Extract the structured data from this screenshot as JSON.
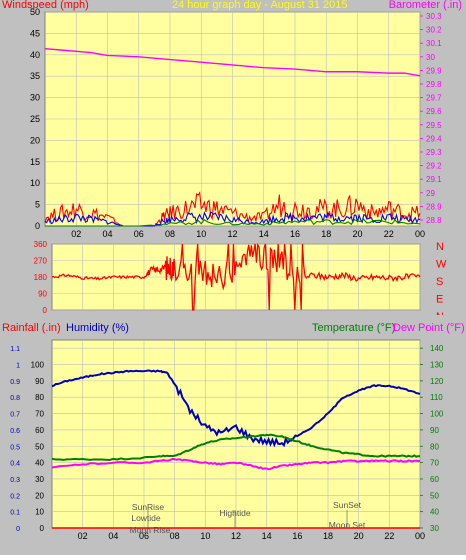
{
  "chart_data": [
    {
      "type": "line",
      "title": "24 hour graph day - August 31 2015",
      "left_label": "Windspeed (mph)",
      "right_label": "Barometer (.in)",
      "left_axis": {
        "ticks": [
          "0",
          "5",
          "10",
          "15",
          "20",
          "25",
          "30",
          "35",
          "40",
          "45",
          "50"
        ],
        "ylim": [
          0,
          50
        ]
      },
      "right_axis": {
        "ticks": [
          "28.8",
          "28.9",
          "29",
          "29.1",
          "29.2",
          "29.3",
          "29.4",
          "29.5",
          "29.6",
          "29.7",
          "29.8",
          "29.9",
          "30",
          "30.1",
          "30.2",
          "30.3"
        ],
        "ylim": [
          28.8,
          30.3
        ]
      },
      "x_ticks": [
        "02",
        "04",
        "06",
        "08",
        "10",
        "12",
        "14",
        "16",
        "18",
        "20",
        "22",
        "00"
      ],
      "series": [
        {
          "axis": "right",
          "color": "#ff00ff",
          "x": [
            0,
            1,
            2,
            3,
            4,
            6,
            8,
            10,
            12,
            14,
            16,
            18,
            20,
            22,
            23,
            24
          ],
          "values": [
            30.06,
            30.05,
            30.04,
            30.03,
            30.01,
            30.0,
            29.98,
            29.96,
            29.94,
            29.92,
            29.91,
            29.89,
            29.89,
            29.88,
            29.88,
            29.86
          ]
        },
        {
          "axis": "left",
          "color": "#ff0000",
          "name_hint": "gust",
          "x": [
            0,
            1,
            2,
            3,
            4,
            5,
            6,
            7,
            7.5,
            8,
            9,
            10,
            11,
            12,
            13,
            14,
            15,
            16,
            17,
            18,
            19,
            20,
            21,
            22,
            23,
            24
          ],
          "values": [
            2,
            3,
            4,
            3,
            2,
            0,
            0,
            0,
            2,
            3,
            4,
            5,
            4,
            3,
            2,
            2,
            5,
            4,
            4,
            4,
            4,
            5,
            3,
            4,
            3,
            3
          ]
        },
        {
          "axis": "left",
          "color": "#0000ff",
          "name_hint": "average",
          "x": [
            0,
            1,
            2,
            3,
            4,
            5,
            6,
            7,
            7.5,
            8,
            9,
            10,
            11,
            12,
            13,
            14,
            15,
            16,
            17,
            18,
            19,
            20,
            21,
            22,
            23,
            24
          ],
          "values": [
            1,
            1.5,
            2,
            1.5,
            1,
            0,
            0,
            0,
            1,
            1.5,
            2,
            2,
            2,
            1.5,
            1,
            1,
            2,
            2,
            2,
            2,
            2,
            2,
            1.5,
            2,
            1.5,
            1.5
          ]
        },
        {
          "axis": "left",
          "color": "#008000",
          "name_hint": "low",
          "x": [
            0,
            6,
            8,
            10,
            12,
            14,
            16,
            18,
            20,
            22,
            24
          ],
          "values": [
            0,
            0,
            0.5,
            1,
            0.5,
            0.5,
            1,
            1,
            1,
            1,
            0.5
          ]
        }
      ]
    },
    {
      "type": "scatter",
      "title": "",
      "left_axis": {
        "ticks": [
          "0",
          "90",
          "180",
          "270",
          "360"
        ],
        "ylim": [
          0,
          360
        ]
      },
      "right_labels": [
        "N",
        "W",
        "S",
        "E",
        "N"
      ],
      "series": [
        {
          "color": "#ff0000",
          "x": [
            0,
            1,
            2,
            3,
            4,
            5,
            6,
            6.5,
            7,
            7.5,
            8,
            9,
            10,
            11,
            12,
            13,
            14,
            15,
            16,
            17,
            18,
            19,
            20,
            21,
            22,
            23,
            24
          ],
          "values": [
            180,
            190,
            175,
            170,
            180,
            180,
            180,
            220,
            220,
            230,
            230,
            210,
            200,
            180,
            230,
            300,
            280,
            250,
            170,
            190,
            180,
            190,
            170,
            180,
            175,
            180,
            180
          ]
        }
      ],
      "note": "Wind direction degrees; many spikes to 0/360 between 08-16"
    },
    {
      "type": "line",
      "left_label_1": "Rainfall (.in)",
      "left_label_2": "Humidity (%)",
      "right_label_1": "Temperature (°F)",
      "right_label_2": "Dew Point (°F)",
      "rain_axis": {
        "ticks": [
          "0",
          "0.1",
          "0.2",
          "0.3",
          "0.4",
          "0.5",
          "0.6",
          "0.7",
          "0.8",
          "0.9",
          "1",
          "1.1"
        ],
        "ylim": [
          0,
          1.15
        ]
      },
      "humidity_axis": {
        "ticks": [
          "0",
          "10",
          "20",
          "30",
          "40",
          "50",
          "60",
          "70",
          "80",
          "90",
          "100"
        ],
        "ylim": [
          0,
          100
        ]
      },
      "temp_axis": {
        "ticks": [
          "30",
          "40",
          "50",
          "60",
          "70",
          "80",
          "90",
          "100",
          "110",
          "120",
          "130",
          "140"
        ],
        "ylim": [
          30,
          145
        ]
      },
      "x_ticks": [
        "02",
        "04",
        "06",
        "08",
        "10",
        "12",
        "14",
        "16",
        "18",
        "20",
        "22",
        "00"
      ],
      "annotations": [
        "SunRise",
        "Lowtide",
        "Moon Rise",
        "Hightide",
        "SunSet",
        "Moon Set"
      ],
      "series": [
        {
          "axis": "humidity",
          "color": "#0000c0",
          "x": [
            0,
            1,
            2,
            3,
            4,
            5,
            6,
            7,
            7.5,
            8,
            9,
            10,
            11,
            12,
            13,
            14,
            15,
            16,
            17,
            18,
            19,
            20,
            21,
            22,
            23,
            24
          ],
          "values": [
            87,
            90,
            92,
            94,
            95,
            96,
            96,
            96,
            95,
            88,
            72,
            62,
            58,
            62,
            55,
            53,
            52,
            56,
            62,
            70,
            80,
            84,
            87,
            87,
            85,
            82
          ]
        },
        {
          "axis": "temp",
          "color": "#008000",
          "x": [
            0,
            2,
            4,
            6,
            7,
            8,
            9,
            10,
            11,
            12,
            13,
            14,
            15,
            16,
            17,
            18,
            19,
            20,
            21,
            22,
            23,
            24
          ],
          "values": [
            72,
            72,
            72,
            73,
            74,
            74,
            78,
            82,
            84,
            85,
            86,
            87,
            86,
            83,
            80,
            78,
            76,
            75,
            74,
            74,
            74,
            74
          ]
        },
        {
          "axis": "temp",
          "color": "#ff00ff",
          "x": [
            0,
            2,
            4,
            6,
            7,
            8,
            9,
            10,
            11,
            12,
            13,
            14,
            15,
            16,
            17,
            18,
            19,
            20,
            21,
            22,
            23,
            24
          ],
          "values": [
            67,
            69,
            70,
            70,
            71,
            72,
            71,
            70,
            69,
            70,
            68,
            66,
            68,
            69,
            70,
            70,
            71,
            71,
            71,
            71,
            71,
            71
          ]
        },
        {
          "axis": "rain",
          "color": "#ff0000",
          "x": [
            0,
            24
          ],
          "values": [
            0,
            0
          ]
        }
      ]
    }
  ],
  "colors": {
    "plot_bg": "#ffffa0",
    "frame_bg": "#c0c0c0",
    "grid": "#bdbdbd",
    "title_color": "#ffff00",
    "left_label_color": "#ff0000",
    "right_label_color": "#ff00ff"
  }
}
